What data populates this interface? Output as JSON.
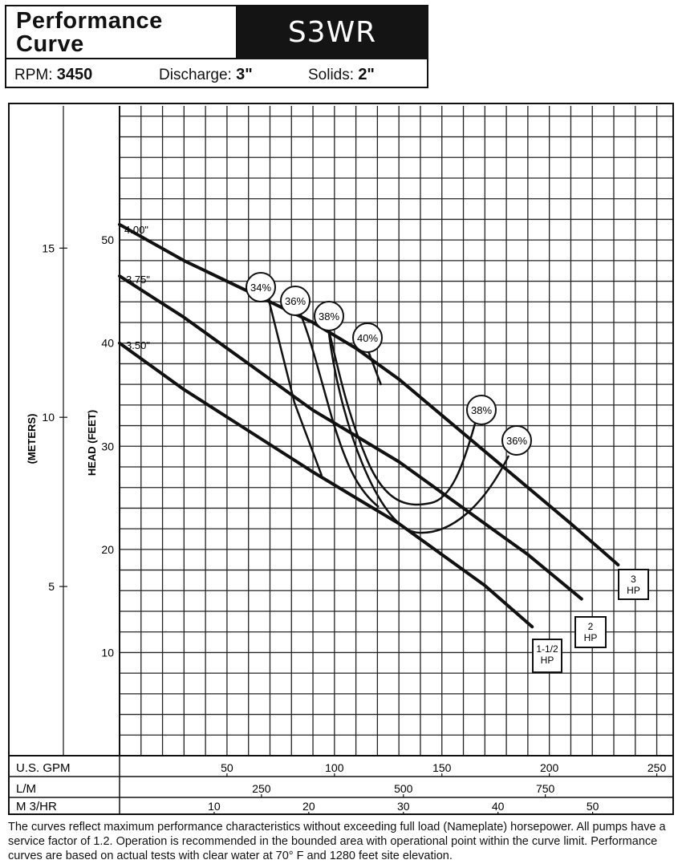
{
  "header": {
    "title_line1": "Performance",
    "title_line2": "Curve",
    "model": "S3WR",
    "rpm_label": "RPM:",
    "rpm_value": "3450",
    "discharge_label": "Discharge:",
    "discharge_value": "3\"",
    "solids_label": "Solids:",
    "solids_value": "2\""
  },
  "chart_data": {
    "type": "line",
    "ylabel": "HEAD (FEET)",
    "ylabel_metric": "(METERS)",
    "ylim": [
      0,
      63
    ],
    "xlim": [
      0,
      258
    ],
    "yticks_feet": [
      10,
      20,
      30,
      40,
      50
    ],
    "yticks_meters": [
      5,
      10,
      15
    ],
    "x_axes": [
      {
        "label": "U.S. GPM",
        "ticks": [
          50,
          100,
          150,
          200,
          250
        ]
      },
      {
        "label": "L/M",
        "ticks": [
          250,
          500,
          750
        ]
      },
      {
        "label": "M 3/HR",
        "ticks": [
          10,
          20,
          30,
          40,
          50
        ]
      }
    ],
    "series": [
      {
        "name": "4.00\"",
        "end_label": [
          "3",
          "HP"
        ],
        "x": [
          0,
          30,
          60,
          90,
          110,
          130,
          150,
          170,
          190,
          210,
          232
        ],
        "y": [
          51.5,
          48,
          45,
          42,
          39.5,
          36.5,
          33,
          29.5,
          26,
          22.5,
          18.5
        ]
      },
      {
        "name": "3.75\"",
        "end_label": [
          "2",
          "HP"
        ],
        "x": [
          0,
          30,
          60,
          90,
          110,
          130,
          150,
          170,
          190,
          215
        ],
        "y": [
          46.5,
          42.5,
          38,
          33.5,
          31,
          28.5,
          25.5,
          22.5,
          19.5,
          15.2
        ]
      },
      {
        "name": "3.50\"",
        "end_label": [
          "1-1/2",
          "HP"
        ],
        "x": [
          0,
          30,
          60,
          90,
          110,
          130,
          150,
          170,
          192
        ],
        "y": [
          40,
          35.5,
          31.5,
          27.5,
          25,
          22.5,
          19.5,
          16.5,
          12.5
        ]
      }
    ],
    "efficiency_labels": [
      "34%",
      "36%",
      "38%",
      "40%",
      "38%",
      "36%"
    ]
  },
  "footnote": "The curves reflect maximum performance characteristics without exceeding full load (Nameplate) horsepower. All pumps have a service factor of 1.2. Operation is recommended in the bounded area with operational point within the curve limit. Performance curves are based on actual tests with clear water at 70° F and 1280 feet site elevation."
}
